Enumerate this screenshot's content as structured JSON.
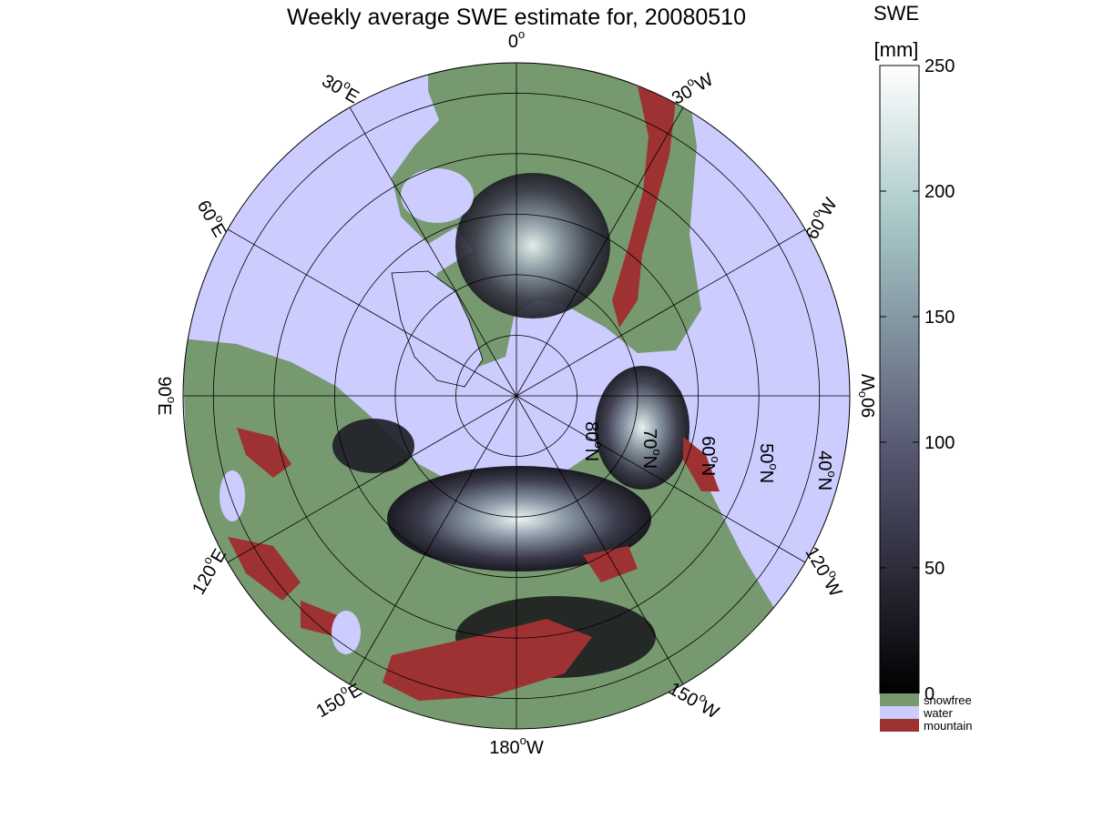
{
  "title": "Weekly average SWE estimate for, 20080510",
  "map": {
    "projection": "north polar stereographic",
    "lon_labels": [
      {
        "text": "90°W",
        "main": "90",
        "deg": "o",
        "hemi": "W",
        "lon": -90
      },
      {
        "text": "120°W",
        "main": "120",
        "deg": "o",
        "hemi": "W",
        "lon": -120
      },
      {
        "text": "150°W",
        "main": "150",
        "deg": "o",
        "hemi": "W",
        "lon": -150
      },
      {
        "text": "180°W",
        "main": "180",
        "deg": "o",
        "hemi": "W",
        "lon": 180
      },
      {
        "text": "150°E",
        "main": "150",
        "deg": "o",
        "hemi": "E",
        "lon": 150
      },
      {
        "text": "120°E",
        "main": "120",
        "deg": "o",
        "hemi": "E",
        "lon": 120
      },
      {
        "text": "90°E",
        "main": "90",
        "deg": "o",
        "hemi": "E",
        "lon": 90
      },
      {
        "text": "60°E",
        "main": "60",
        "deg": "o",
        "hemi": "E",
        "lon": 60
      },
      {
        "text": "30°E",
        "main": "30",
        "deg": "o",
        "hemi": "E",
        "lon": 30
      },
      {
        "text": "0°",
        "main": "0",
        "deg": "o",
        "hemi": "",
        "lon": 0
      },
      {
        "text": "30°W",
        "main": "30",
        "deg": "o",
        "hemi": "W",
        "lon": -30
      },
      {
        "text": "60°W",
        "main": "60",
        "deg": "o",
        "hemi": "W",
        "lon": -60
      }
    ],
    "lat_labels": [
      {
        "text": "80°N",
        "main": "80",
        "deg": "o",
        "hemi": "N",
        "lat": 80
      },
      {
        "text": "70°N",
        "main": "70",
        "deg": "o",
        "hemi": "N",
        "lat": 70
      },
      {
        "text": "60°N",
        "main": "60",
        "deg": "o",
        "hemi": "N",
        "lat": 60
      },
      {
        "text": "50°N",
        "main": "50",
        "deg": "o",
        "hemi": "N",
        "lat": 50
      },
      {
        "text": "40°N",
        "main": "40",
        "deg": "o",
        "hemi": "N",
        "lat": 40
      }
    ],
    "lat_range": [
      35,
      90
    ],
    "graticule_lons": [
      0,
      30,
      60,
      90,
      120,
      150,
      180,
      -150,
      -120,
      -90,
      -60,
      -30
    ],
    "colors": {
      "water": "#ccccff",
      "snowfree": "#77996f",
      "mountain": "#9e3131",
      "coast": "#000000"
    }
  },
  "colorbar": {
    "header_line1": "SWE",
    "header_line2": "[mm]",
    "range": [
      0,
      250
    ],
    "ticks": [
      "250",
      "200",
      "150",
      "100",
      "50",
      "0"
    ],
    "tick_values": [
      250,
      200,
      150,
      100,
      50,
      0
    ],
    "colormap": "bone",
    "categories": [
      {
        "label": "snowfree",
        "color": "#77996f"
      },
      {
        "label": "water",
        "color": "#ccccff"
      },
      {
        "label": "mountain",
        "color": "#9e3131"
      }
    ]
  }
}
